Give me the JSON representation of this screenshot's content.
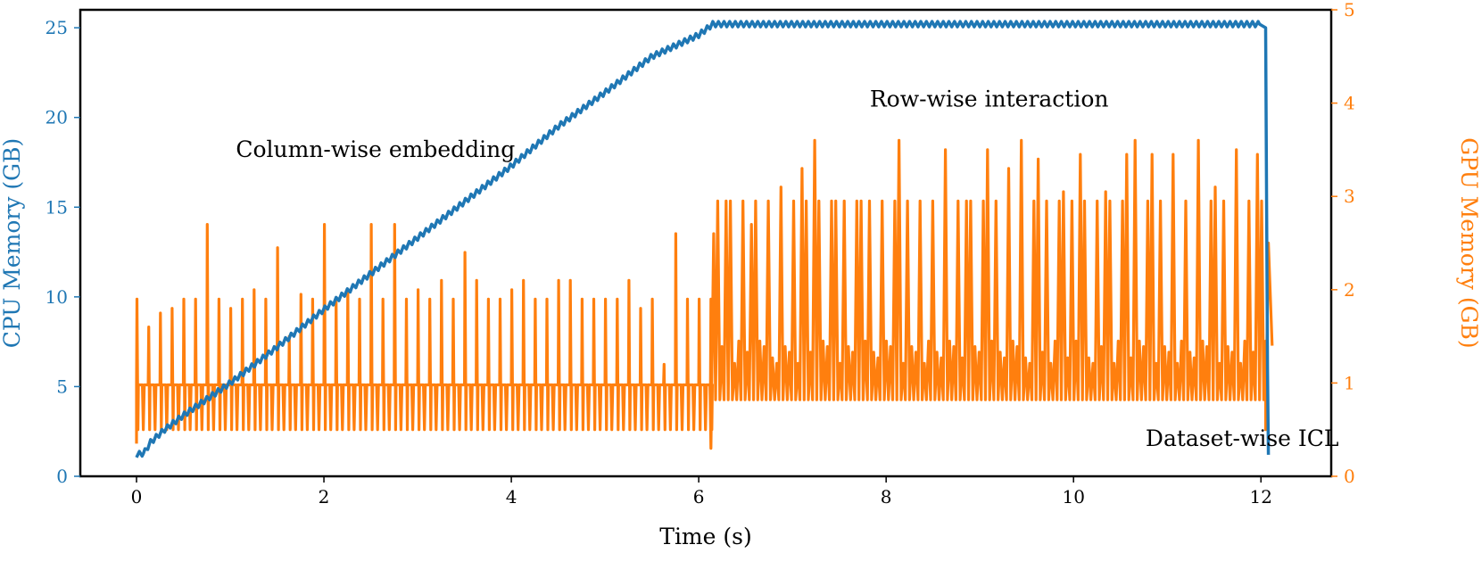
{
  "colors": {
    "cpu": "#1f77b4",
    "gpu": "#ff7f0e",
    "axis": "#000000",
    "background": "#ffffff"
  },
  "chart_data": {
    "type": "line",
    "title": "",
    "xlabel": "Time (s)",
    "ylabel_left": "CPU Memory (GB)",
    "ylabel_right": "GPU Memory (GB)",
    "xlim": [
      -0.6,
      12.75
    ],
    "ylim_left": [
      0,
      26
    ],
    "ylim_right": [
      0,
      5
    ],
    "xticks": [
      "0",
      "2",
      "4",
      "6",
      "8",
      "10",
      "12"
    ],
    "yticks_left": [
      "0",
      "5",
      "10",
      "15",
      "20",
      "25"
    ],
    "yticks_right": [
      "0",
      "1",
      "2",
      "3",
      "4",
      "5"
    ],
    "grid": false,
    "annotations": [
      {
        "text": "Column-wise embedding",
        "x": 2.55,
        "y": 17.8
      },
      {
        "text": "Row-wise interaction",
        "x": 9.1,
        "y": 20.6
      },
      {
        "text": "Dataset-wise ICL",
        "x": 11.8,
        "y": 1.7
      }
    ],
    "series": [
      {
        "name": "CPU Memory (GB)",
        "axis": "left",
        "description": "Sawtooth ramp from ~1.2 GB at t=0 to ~25.2 GB at t=6.15, plateau with small ripple until t=12.05, then drop to ~1.2 GB",
        "x": [
          0.0,
          0.08,
          0.15,
          0.3,
          0.5,
          1.0,
          1.5,
          2.0,
          2.5,
          3.0,
          3.5,
          4.0,
          4.5,
          5.0,
          5.5,
          6.0,
          6.15,
          7.0,
          8.0,
          9.0,
          10.0,
          11.0,
          12.0,
          12.05,
          12.07,
          12.08
        ],
        "y": [
          1.2,
          1.3,
          1.9,
          2.6,
          3.4,
          5.2,
          7.2,
          9.3,
          11.3,
          13.3,
          15.3,
          17.3,
          19.5,
          21.4,
          23.4,
          24.6,
          25.2,
          25.2,
          25.2,
          25.2,
          25.2,
          25.2,
          25.2,
          25.0,
          6.0,
          1.2
        ],
        "ripple_amplitude": 0.3,
        "ripple_period": 0.06
      },
      {
        "name": "GPU Memory (GB)",
        "axis": "right",
        "description": "Phase 1 (0–6.15 s): baseline ~0.98 GB with frequent dips to ~0.5 and spikes up to ~2.7; Phase 2 (6.15–12.05 s): dense oscillation between ~0.82 and ~1.45 with spikes to ~2.9–3.6; final spike ~2.5 at 12.1 s",
        "phase1": {
          "range": [
            0.0,
            6.15
          ],
          "baseline": 0.98,
          "dip": 0.5
        },
        "phase1_spike_times": [
          0.0,
          0.13,
          0.25,
          0.37,
          0.5,
          0.62,
          0.75,
          0.87,
          1.0,
          1.12,
          1.25,
          1.37,
          1.5,
          1.62,
          1.75,
          1.87,
          2.0,
          2.12,
          2.25,
          2.37,
          2.5,
          2.62,
          2.75,
          2.87,
          3.0,
          3.12,
          3.25,
          3.37,
          3.5,
          3.62,
          3.75,
          3.87,
          4.0,
          4.12,
          4.25,
          4.37,
          4.5,
          4.62,
          4.75,
          4.87,
          5.0,
          5.12,
          5.25,
          5.37,
          5.5,
          5.62,
          5.75,
          5.87,
          6.0,
          6.1
        ],
        "phase1_spike_values": [
          1.9,
          1.6,
          1.75,
          1.8,
          1.9,
          1.9,
          2.7,
          1.9,
          1.8,
          1.9,
          2.0,
          1.9,
          2.45,
          1.5,
          1.95,
          1.9,
          2.7,
          1.9,
          2.0,
          1.9,
          2.7,
          1.9,
          2.7,
          1.9,
          2.0,
          1.9,
          2.1,
          1.9,
          2.4,
          2.1,
          1.9,
          1.9,
          2.0,
          2.1,
          1.9,
          1.9,
          2.1,
          2.1,
          1.9,
          1.9,
          1.9,
          1.9,
          2.1,
          1.8,
          1.9,
          1.2,
          2.6,
          1.9,
          1.9,
          1.9
        ],
        "phase2": {
          "range": [
            6.15,
            12.05
          ],
          "low": 0.82,
          "high": 1.45
        },
        "phase2_spike_times": [
          6.25,
          6.55,
          6.85,
          7.1,
          7.2,
          7.45,
          7.7,
          7.95,
          8.1,
          8.35,
          8.6,
          8.85,
          9.05,
          9.3,
          9.4,
          9.6,
          9.85,
          10.05,
          10.3,
          10.55,
          10.62,
          10.8,
          11.05,
          11.3,
          11.5,
          11.7,
          11.95
        ],
        "phase2_spike_values": [
          2.95,
          2.7,
          3.1,
          3.3,
          3.6,
          2.95,
          2.95,
          2.95,
          3.6,
          2.95,
          3.5,
          2.95,
          3.5,
          3.3,
          3.6,
          3.4,
          3.05,
          3.45,
          3.05,
          3.45,
          3.6,
          3.45,
          3.45,
          3.6,
          3.1,
          3.5,
          3.45
        ],
        "end": {
          "x": [
            12.05,
            12.08,
            12.12
          ],
          "y": [
            0.5,
            2.5,
            1.4
          ]
        }
      }
    ]
  }
}
